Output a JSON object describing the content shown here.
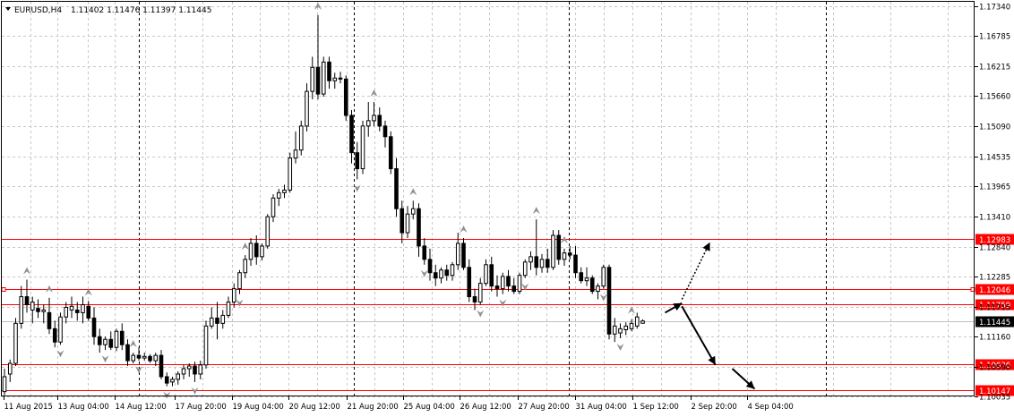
{
  "header": {
    "symbol": "EURUSD,H4",
    "ohlc": "1.11402 1.11476 1.11397 1.11445"
  },
  "colors": {
    "grid": "#c8c8c8",
    "candle": "#000000",
    "level_line": "#ff0000",
    "level_label_bg": "#ff0000",
    "current_label_bg": "#000000",
    "fractal": "#909090"
  },
  "chart_data": {
    "type": "candlestick",
    "title": "EURUSD,H4",
    "grid": true,
    "ylim": [
      1.1003,
      1.1743
    ],
    "y_ticks": [
      1.1734,
      1.16785,
      1.16215,
      1.1566,
      1.1509,
      1.14535,
      1.13965,
      1.1341,
      1.1284,
      1.12285,
      1.11715,
      1.1116,
      1.1059,
      1.10035
    ],
    "x_ticks": [
      "11 Aug 2015",
      "13 Aug 04:00",
      "14 Aug 12:00",
      "17 Aug 20:00",
      "19 Aug 04:00",
      "20 Aug 12:00",
      "21 Aug 20:00",
      "25 Aug 04:00",
      "26 Aug 12:00",
      "27 Aug 20:00",
      "31 Aug 04:00",
      "1 Sep 12:00",
      "2 Sep 20:00",
      "4 Sep 04:00"
    ],
    "levels": [
      {
        "label": "1.12983",
        "value": 1.12983
      },
      {
        "label": "1.12046",
        "value": 1.12046
      },
      {
        "label": "1.11759",
        "value": 1.11759
      },
      {
        "label": "1.10636",
        "value": 1.10636
      },
      {
        "label": "1.10147",
        "value": 1.10147
      }
    ],
    "current_price": {
      "label": "1.11445",
      "value": 1.11445
    },
    "candles": [
      {
        "o": 1.1012,
        "h": 1.1055,
        "l": 1.1005,
        "c": 1.104
      },
      {
        "o": 1.1045,
        "h": 1.1072,
        "l": 1.103,
        "c": 1.1065
      },
      {
        "o": 1.1065,
        "h": 1.115,
        "l": 1.106,
        "c": 1.114
      },
      {
        "o": 1.114,
        "h": 1.121,
        "l": 1.113,
        "c": 1.119
      },
      {
        "o": 1.119,
        "h": 1.1222,
        "l": 1.116,
        "c": 1.1175
      },
      {
        "o": 1.1165,
        "h": 1.119,
        "l": 1.114,
        "c": 1.118
      },
      {
        "o": 1.1168,
        "h": 1.1185,
        "l": 1.115,
        "c": 1.1162
      },
      {
        "o": 1.1162,
        "h": 1.1175,
        "l": 1.114,
        "c": 1.1165
      },
      {
        "o": 1.116,
        "h": 1.1188,
        "l": 1.112,
        "c": 1.113
      },
      {
        "o": 1.113,
        "h": 1.1145,
        "l": 1.1095,
        "c": 1.1105
      },
      {
        "o": 1.1105,
        "h": 1.116,
        "l": 1.11,
        "c": 1.1152
      },
      {
        "o": 1.1152,
        "h": 1.118,
        "l": 1.114,
        "c": 1.117
      },
      {
        "o": 1.1165,
        "h": 1.119,
        "l": 1.115,
        "c": 1.1172
      },
      {
        "o": 1.1165,
        "h": 1.118,
        "l": 1.1145,
        "c": 1.116
      },
      {
        "o": 1.116,
        "h": 1.119,
        "l": 1.114,
        "c": 1.1175
      },
      {
        "o": 1.1172,
        "h": 1.1182,
        "l": 1.1145,
        "c": 1.115
      },
      {
        "o": 1.115,
        "h": 1.117,
        "l": 1.11,
        "c": 1.1115
      },
      {
        "o": 1.1115,
        "h": 1.113,
        "l": 1.1085,
        "c": 1.11
      },
      {
        "o": 1.11,
        "h": 1.1115,
        "l": 1.109,
        "c": 1.111
      },
      {
        "o": 1.111,
        "h": 1.1125,
        "l": 1.109,
        "c": 1.1095
      },
      {
        "o": 1.1095,
        "h": 1.113,
        "l": 1.1088,
        "c": 1.1125
      },
      {
        "o": 1.1125,
        "h": 1.114,
        "l": 1.109,
        "c": 1.11
      },
      {
        "o": 1.11,
        "h": 1.111,
        "l": 1.106,
        "c": 1.107
      },
      {
        "o": 1.107,
        "h": 1.1085,
        "l": 1.1065,
        "c": 1.108
      },
      {
        "o": 1.108,
        "h": 1.1095,
        "l": 1.107,
        "c": 1.1075
      },
      {
        "o": 1.1075,
        "h": 1.1085,
        "l": 1.107,
        "c": 1.1078
      },
      {
        "o": 1.1078,
        "h": 1.1082,
        "l": 1.1066,
        "c": 1.107
      },
      {
        "o": 1.107,
        "h": 1.1085,
        "l": 1.106,
        "c": 1.108
      },
      {
        "o": 1.108,
        "h": 1.109,
        "l": 1.1035,
        "c": 1.104
      },
      {
        "o": 1.104,
        "h": 1.1048,
        "l": 1.1022,
        "c": 1.1028
      },
      {
        "o": 1.103,
        "h": 1.104,
        "l": 1.1022,
        "c": 1.1035
      },
      {
        "o": 1.1035,
        "h": 1.105,
        "l": 1.1025,
        "c": 1.1045
      },
      {
        "o": 1.1045,
        "h": 1.1062,
        "l": 1.1035,
        "c": 1.1055
      },
      {
        "o": 1.1055,
        "h": 1.1065,
        "l": 1.104,
        "c": 1.106
      },
      {
        "o": 1.106,
        "h": 1.1068,
        "l": 1.103,
        "c": 1.1045
      },
      {
        "o": 1.1045,
        "h": 1.107,
        "l": 1.1035,
        "c": 1.1062
      },
      {
        "o": 1.1062,
        "h": 1.1145,
        "l": 1.1055,
        "c": 1.1135
      },
      {
        "o": 1.1135,
        "h": 1.117,
        "l": 1.113,
        "c": 1.115
      },
      {
        "o": 1.115,
        "h": 1.118,
        "l": 1.111,
        "c": 1.114
      },
      {
        "o": 1.114,
        "h": 1.1165,
        "l": 1.113,
        "c": 1.1155
      },
      {
        "o": 1.1155,
        "h": 1.119,
        "l": 1.115,
        "c": 1.118
      },
      {
        "o": 1.118,
        "h": 1.1215,
        "l": 1.117,
        "c": 1.1205
      },
      {
        "o": 1.1205,
        "h": 1.124,
        "l": 1.1195,
        "c": 1.1235
      },
      {
        "o": 1.1235,
        "h": 1.1268,
        "l": 1.1225,
        "c": 1.126
      },
      {
        "o": 1.126,
        "h": 1.13,
        "l": 1.1248,
        "c": 1.129
      },
      {
        "o": 1.129,
        "h": 1.1305,
        "l": 1.125,
        "c": 1.1265
      },
      {
        "o": 1.1265,
        "h": 1.129,
        "l": 1.1258,
        "c": 1.1285
      },
      {
        "o": 1.1285,
        "h": 1.1345,
        "l": 1.128,
        "c": 1.134
      },
      {
        "o": 1.134,
        "h": 1.1382,
        "l": 1.133,
        "c": 1.1375
      },
      {
        "o": 1.1375,
        "h": 1.1392,
        "l": 1.136,
        "c": 1.1385
      },
      {
        "o": 1.1385,
        "h": 1.14,
        "l": 1.1375,
        "c": 1.139
      },
      {
        "o": 1.139,
        "h": 1.146,
        "l": 1.1385,
        "c": 1.145
      },
      {
        "o": 1.145,
        "h": 1.15,
        "l": 1.144,
        "c": 1.1465
      },
      {
        "o": 1.1465,
        "h": 1.152,
        "l": 1.1455,
        "c": 1.151
      },
      {
        "o": 1.151,
        "h": 1.159,
        "l": 1.15,
        "c": 1.1575
      },
      {
        "o": 1.1575,
        "h": 1.164,
        "l": 1.156,
        "c": 1.162
      },
      {
        "o": 1.162,
        "h": 1.1718,
        "l": 1.156,
        "c": 1.157
      },
      {
        "o": 1.157,
        "h": 1.164,
        "l": 1.1565,
        "c": 1.163
      },
      {
        "o": 1.163,
        "h": 1.164,
        "l": 1.158,
        "c": 1.1595
      },
      {
        "o": 1.1595,
        "h": 1.161,
        "l": 1.158,
        "c": 1.16
      },
      {
        "o": 1.16,
        "h": 1.1612,
        "l": 1.159,
        "c": 1.1598
      },
      {
        "o": 1.1598,
        "h": 1.1605,
        "l": 1.152,
        "c": 1.153
      },
      {
        "o": 1.153,
        "h": 1.154,
        "l": 1.144,
        "c": 1.146
      },
      {
        "o": 1.146,
        "h": 1.148,
        "l": 1.141,
        "c": 1.143
      },
      {
        "o": 1.143,
        "h": 1.152,
        "l": 1.142,
        "c": 1.151
      },
      {
        "o": 1.151,
        "h": 1.1555,
        "l": 1.149,
        "c": 1.152
      },
      {
        "o": 1.152,
        "h": 1.1555,
        "l": 1.151,
        "c": 1.153
      },
      {
        "o": 1.153,
        "h": 1.1545,
        "l": 1.15,
        "c": 1.151
      },
      {
        "o": 1.151,
        "h": 1.152,
        "l": 1.147,
        "c": 1.149
      },
      {
        "o": 1.149,
        "h": 1.15,
        "l": 1.142,
        "c": 1.143
      },
      {
        "o": 1.143,
        "h": 1.145,
        "l": 1.134,
        "c": 1.1355
      },
      {
        "o": 1.1355,
        "h": 1.137,
        "l": 1.129,
        "c": 1.131
      },
      {
        "o": 1.131,
        "h": 1.136,
        "l": 1.13,
        "c": 1.1345
      },
      {
        "o": 1.1345,
        "h": 1.137,
        "l": 1.1335,
        "c": 1.1355
      },
      {
        "o": 1.1355,
        "h": 1.1365,
        "l": 1.1265,
        "c": 1.1285
      },
      {
        "o": 1.1285,
        "h": 1.13,
        "l": 1.125,
        "c": 1.126
      },
      {
        "o": 1.126,
        "h": 1.128,
        "l": 1.122,
        "c": 1.1235
      },
      {
        "o": 1.1235,
        "h": 1.125,
        "l": 1.121,
        "c": 1.1225
      },
      {
        "o": 1.1225,
        "h": 1.1245,
        "l": 1.1215,
        "c": 1.124
      },
      {
        "o": 1.124,
        "h": 1.125,
        "l": 1.122,
        "c": 1.123
      },
      {
        "o": 1.123,
        "h": 1.1255,
        "l": 1.122,
        "c": 1.125
      },
      {
        "o": 1.125,
        "h": 1.131,
        "l": 1.124,
        "c": 1.129
      },
      {
        "o": 1.129,
        "h": 1.13,
        "l": 1.124,
        "c": 1.1245
      },
      {
        "o": 1.1245,
        "h": 1.126,
        "l": 1.118,
        "c": 1.119
      },
      {
        "o": 1.119,
        "h": 1.1205,
        "l": 1.1165,
        "c": 1.118
      },
      {
        "o": 1.118,
        "h": 1.1225,
        "l": 1.1175,
        "c": 1.1215
      },
      {
        "o": 1.1215,
        "h": 1.126,
        "l": 1.121,
        "c": 1.125
      },
      {
        "o": 1.125,
        "h": 1.1265,
        "l": 1.12,
        "c": 1.121
      },
      {
        "o": 1.121,
        "h": 1.123,
        "l": 1.119,
        "c": 1.1205
      },
      {
        "o": 1.1205,
        "h": 1.1235,
        "l": 1.1195,
        "c": 1.1228
      },
      {
        "o": 1.1228,
        "h": 1.124,
        "l": 1.12,
        "c": 1.121
      },
      {
        "o": 1.121,
        "h": 1.1225,
        "l": 1.1195,
        "c": 1.12
      },
      {
        "o": 1.12,
        "h": 1.1235,
        "l": 1.1195,
        "c": 1.123
      },
      {
        "o": 1.123,
        "h": 1.126,
        "l": 1.1225,
        "c": 1.1255
      },
      {
        "o": 1.1255,
        "h": 1.1275,
        "l": 1.124,
        "c": 1.1265
      },
      {
        "o": 1.1265,
        "h": 1.1335,
        "l": 1.123,
        "c": 1.1245
      },
      {
        "o": 1.1245,
        "h": 1.127,
        "l": 1.1235,
        "c": 1.126
      },
      {
        "o": 1.126,
        "h": 1.128,
        "l": 1.1235,
        "c": 1.1245
      },
      {
        "o": 1.1245,
        "h": 1.1315,
        "l": 1.124,
        "c": 1.1305
      },
      {
        "o": 1.1305,
        "h": 1.1315,
        "l": 1.125,
        "c": 1.126
      },
      {
        "o": 1.126,
        "h": 1.128,
        "l": 1.1248,
        "c": 1.1272
      },
      {
        "o": 1.1272,
        "h": 1.1285,
        "l": 1.126,
        "c": 1.1268
      },
      {
        "o": 1.1268,
        "h": 1.1285,
        "l": 1.1225,
        "c": 1.1235
      },
      {
        "o": 1.1235,
        "h": 1.1245,
        "l": 1.1215,
        "c": 1.122
      },
      {
        "o": 1.122,
        "h": 1.1245,
        "l": 1.121,
        "c": 1.1225
      },
      {
        "o": 1.1225,
        "h": 1.123,
        "l": 1.1195,
        "c": 1.12
      },
      {
        "o": 1.12,
        "h": 1.1215,
        "l": 1.1185,
        "c": 1.121
      },
      {
        "o": 1.121,
        "h": 1.125,
        "l": 1.1205,
        "c": 1.1245
      },
      {
        "o": 1.1245,
        "h": 1.125,
        "l": 1.111,
        "c": 1.112
      },
      {
        "o": 1.112,
        "h": 1.115,
        "l": 1.1105,
        "c": 1.1135
      },
      {
        "o": 1.1122,
        "h": 1.114,
        "l": 1.1112,
        "c": 1.113
      },
      {
        "o": 1.1128,
        "h": 1.1142,
        "l": 1.1118,
        "c": 1.1135
      },
      {
        "o": 1.113,
        "h": 1.1148,
        "l": 1.1125,
        "c": 1.114
      },
      {
        "o": 1.1135,
        "h": 1.116,
        "l": 1.113,
        "c": 1.1152
      },
      {
        "o": 1.11402,
        "h": 1.11476,
        "l": 1.11397,
        "c": 1.11445
      }
    ],
    "fractals_up": [
      4,
      8,
      15,
      23,
      43,
      56,
      66,
      73,
      82,
      95,
      100,
      112
    ],
    "fractals_down": [
      10,
      18,
      24,
      29,
      34,
      42,
      63,
      75,
      85,
      89,
      93,
      107,
      110
    ],
    "forecast_arrows": [
      {
        "from_bar": 118,
        "from_price": 1.116,
        "to_bar": 121,
        "to_price": 1.1178,
        "style": "solid"
      },
      {
        "from_bar": 121,
        "from_price": 1.1185,
        "to_bar": 126,
        "to_price": 1.1292,
        "style": "dotted"
      },
      {
        "from_bar": 121,
        "from_price": 1.1172,
        "to_bar": 127,
        "to_price": 1.1062,
        "style": "solid"
      },
      {
        "from_bar": 130,
        "from_price": 1.1055,
        "to_bar": 134,
        "to_price": 1.1017,
        "style": "solid"
      }
    ]
  }
}
